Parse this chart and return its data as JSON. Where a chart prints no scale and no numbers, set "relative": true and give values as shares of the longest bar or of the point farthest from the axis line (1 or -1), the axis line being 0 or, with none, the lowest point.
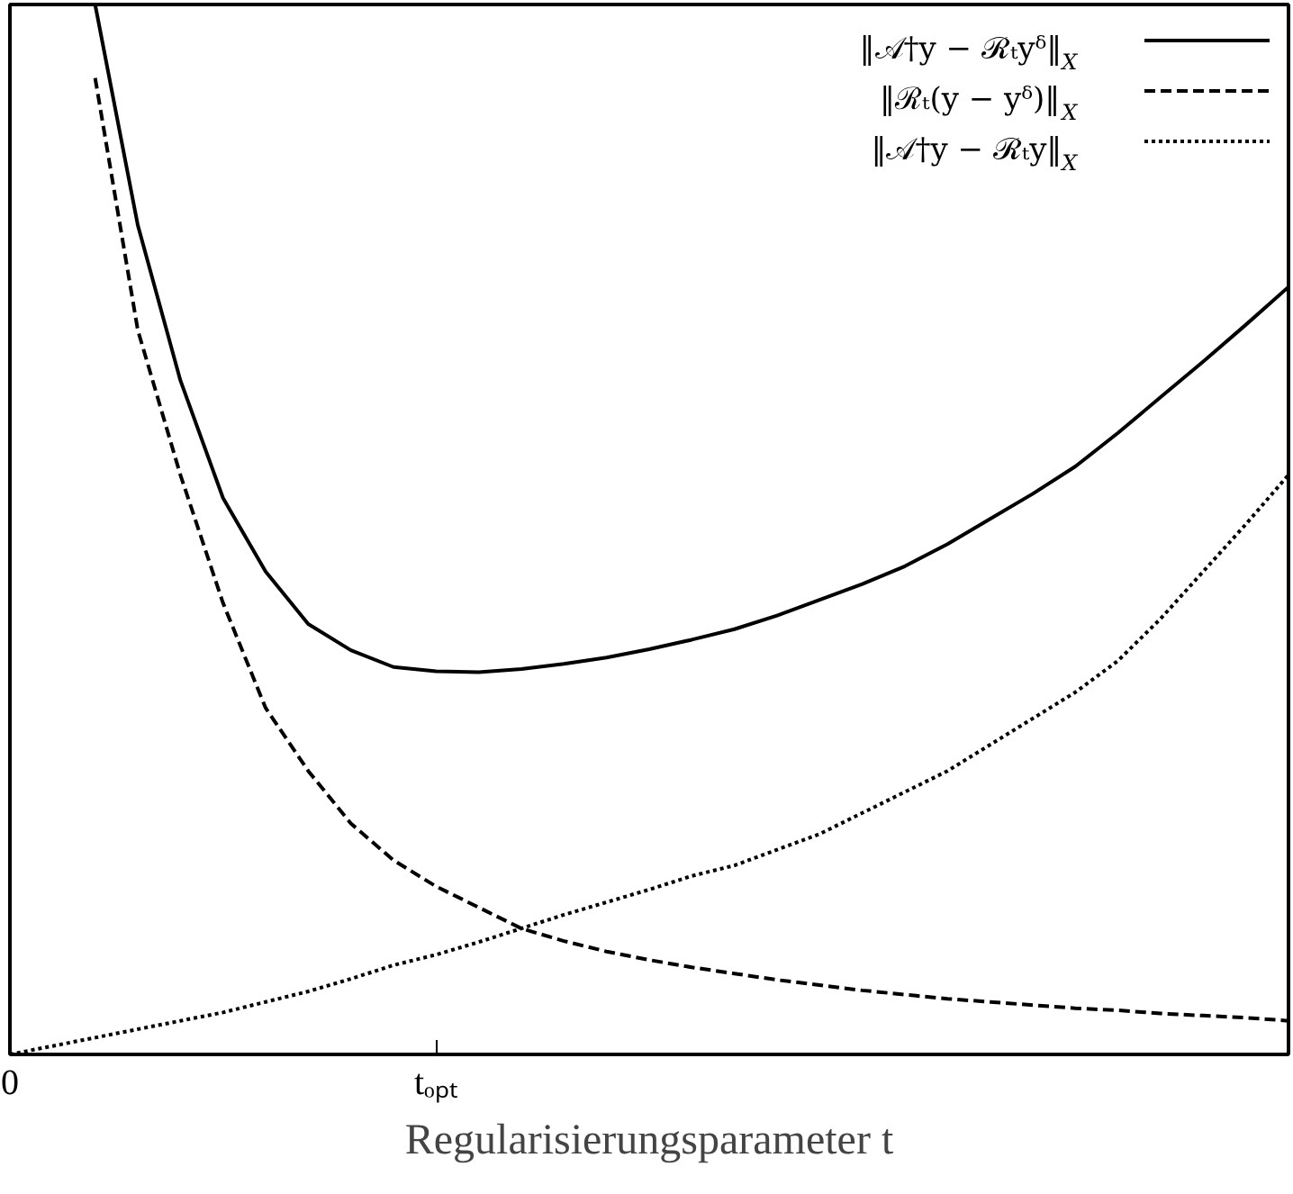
{
  "chart_data": {
    "type": "line",
    "relative": true,
    "xlabel": "Regularisierungsparameter t",
    "categories": [
      "0",
      null,
      null,
      null,
      null,
      null,
      null,
      null,
      null,
      null,
      "tₒₚₜ",
      null,
      null,
      null,
      null,
      null,
      null,
      null,
      null,
      null,
      null,
      null,
      null,
      null,
      null,
      null,
      null,
      null,
      null,
      null,
      null
    ],
    "grid": false,
    "legend": "top right",
    "series": [
      {
        "name": "‖𝒜†y − ℛₜyᵟ‖$_{X}$",
        "color": "#000000",
        "line_style": "solid",
        "values": [
          null,
          null,
          1.0,
          0.79,
          0.642,
          0.53,
          0.46,
          0.41,
          0.385,
          0.369,
          0.365,
          0.364,
          0.367,
          0.372,
          0.378,
          0.386,
          0.395,
          0.405,
          0.418,
          0.433,
          0.448,
          0.465,
          0.486,
          0.51,
          0.534,
          0.56,
          0.592,
          0.626,
          0.66,
          0.695,
          0.731
        ]
      },
      {
        "name": "‖ℛₜ(y − yᵟ)‖$_{X}$",
        "color": "#000000",
        "line_style": "dashed",
        "values": [
          null,
          null,
          0.93,
          0.69,
          0.552,
          0.43,
          0.33,
          0.27,
          0.22,
          0.185,
          0.16,
          0.14,
          0.12,
          0.108,
          0.098,
          0.09,
          0.083,
          0.077,
          0.071,
          0.066,
          0.061,
          0.057,
          0.053,
          0.05,
          0.047,
          0.044,
          0.042,
          0.039,
          0.037,
          0.035,
          0.032
        ]
      },
      {
        "name": "‖𝒜†y − ℛₜy‖$_{X}$",
        "color": "#000000",
        "line_style": "dotted",
        "values": [
          0.0,
          0.008,
          0.016,
          0.024,
          0.032,
          0.04,
          0.05,
          0.06,
          0.072,
          0.085,
          0.095,
          0.107,
          0.12,
          0.133,
          0.145,
          0.157,
          0.17,
          0.18,
          0.195,
          0.21,
          0.23,
          0.25,
          0.27,
          0.295,
          0.32,
          0.345,
          0.375,
          0.415,
          0.46,
          0.505,
          0.552
        ]
      }
    ]
  }
}
